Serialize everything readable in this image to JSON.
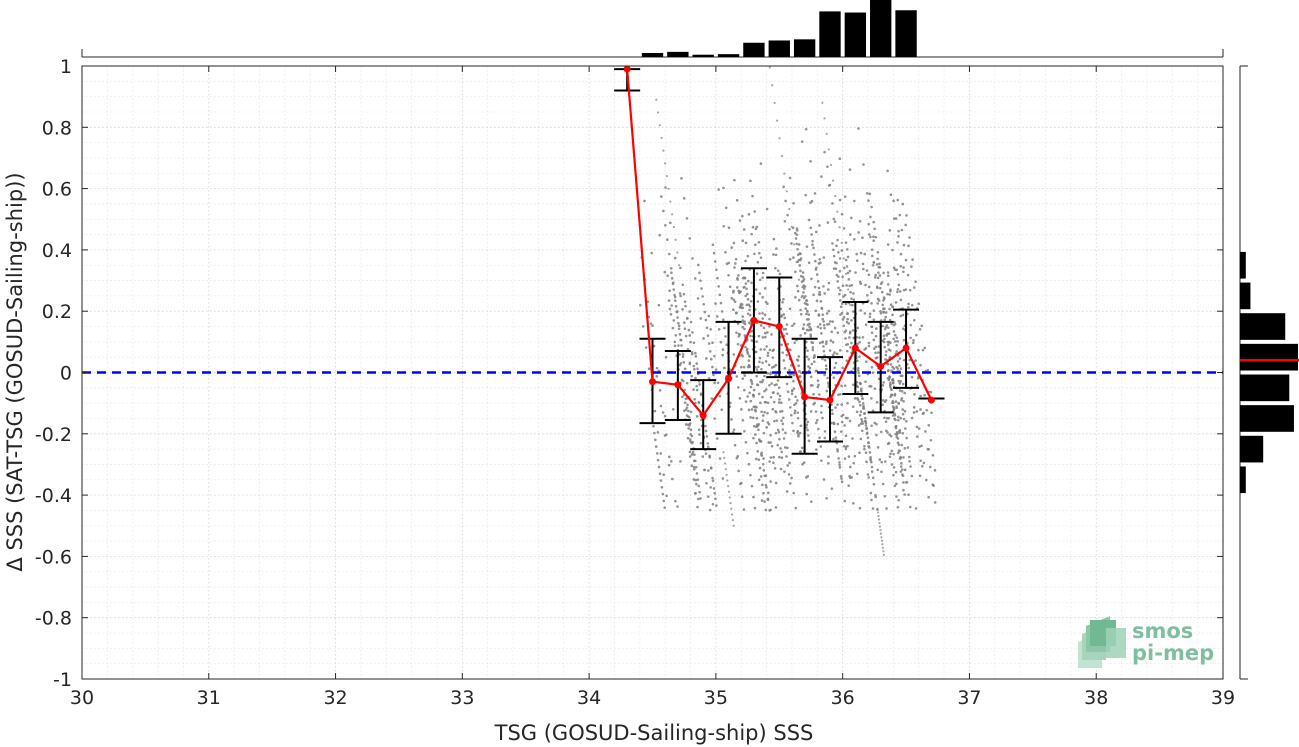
{
  "chart_data": {
    "type": "scatter",
    "xlabel": "TSG (GOSUD-Sailing-ship) SSS",
    "ylabel": "Δ SSS (SAT-TSG (GOSUD-Sailing-ship))",
    "xlim": [
      30,
      39
    ],
    "ylim": [
      -1,
      1
    ],
    "x_ticks": [
      "30",
      "31",
      "32",
      "33",
      "34",
      "35",
      "36",
      "37",
      "38",
      "39"
    ],
    "y_ticks": [
      "-1",
      "-0.8",
      "-0.6",
      "-0.4",
      "-0.2",
      "0",
      "0.2",
      "0.4",
      "0.6",
      "0.8",
      "1"
    ],
    "grid": true,
    "zero_line": {
      "y": 0,
      "color": "#0000ff",
      "style": "dashed"
    },
    "binned_mean": {
      "color": "#ff0000",
      "x": [
        34.3,
        34.5,
        34.7,
        34.9,
        35.1,
        35.3,
        35.5,
        35.7,
        35.9,
        36.1,
        36.3,
        36.5,
        36.7
      ],
      "y": [
        0.99,
        -0.03,
        -0.04,
        -0.14,
        -0.02,
        0.17,
        0.15,
        -0.08,
        -0.09,
        0.08,
        0.02,
        0.08,
        -0.09
      ]
    },
    "error_bars": {
      "color": "#000000",
      "x": [
        34.3,
        34.5,
        34.7,
        34.9,
        35.1,
        35.3,
        35.5,
        35.7,
        35.9,
        36.1,
        36.3,
        36.5,
        36.7
      ],
      "lower": [
        0.92,
        -0.165,
        -0.155,
        -0.25,
        -0.2,
        0.0,
        -0.015,
        -0.265,
        -0.225,
        -0.07,
        -0.13,
        -0.05,
        -0.085
      ],
      "upper": [
        0.99,
        0.11,
        0.07,
        -0.025,
        0.165,
        0.34,
        0.31,
        0.11,
        0.05,
        0.23,
        0.165,
        0.205,
        -0.085
      ]
    },
    "scatter_color": "#808080",
    "x_histogram": {
      "color": "#000000",
      "bin_width": 0.2,
      "centers": [
        34.5,
        34.7,
        34.9,
        35.1,
        35.3,
        35.5,
        35.7,
        35.9,
        36.1,
        36.3,
        36.5
      ],
      "relative_counts": [
        0.07,
        0.09,
        0.04,
        0.05,
        0.25,
        0.29,
        0.31,
        0.8,
        0.78,
        1.0,
        0.82
      ]
    },
    "y_histogram": {
      "color": "#000000",
      "median_line_color": "#ff0000",
      "median": 0.04,
      "bin_width": 0.1,
      "centers": [
        0.35,
        0.25,
        0.15,
        0.05,
        -0.05,
        -0.15,
        -0.25,
        -0.35
      ],
      "relative_counts": [
        0.1,
        0.18,
        0.78,
        1.0,
        0.85,
        0.93,
        0.4,
        0.1
      ]
    }
  },
  "logo": {
    "line1": "smos",
    "line2": "pi-mep"
  }
}
